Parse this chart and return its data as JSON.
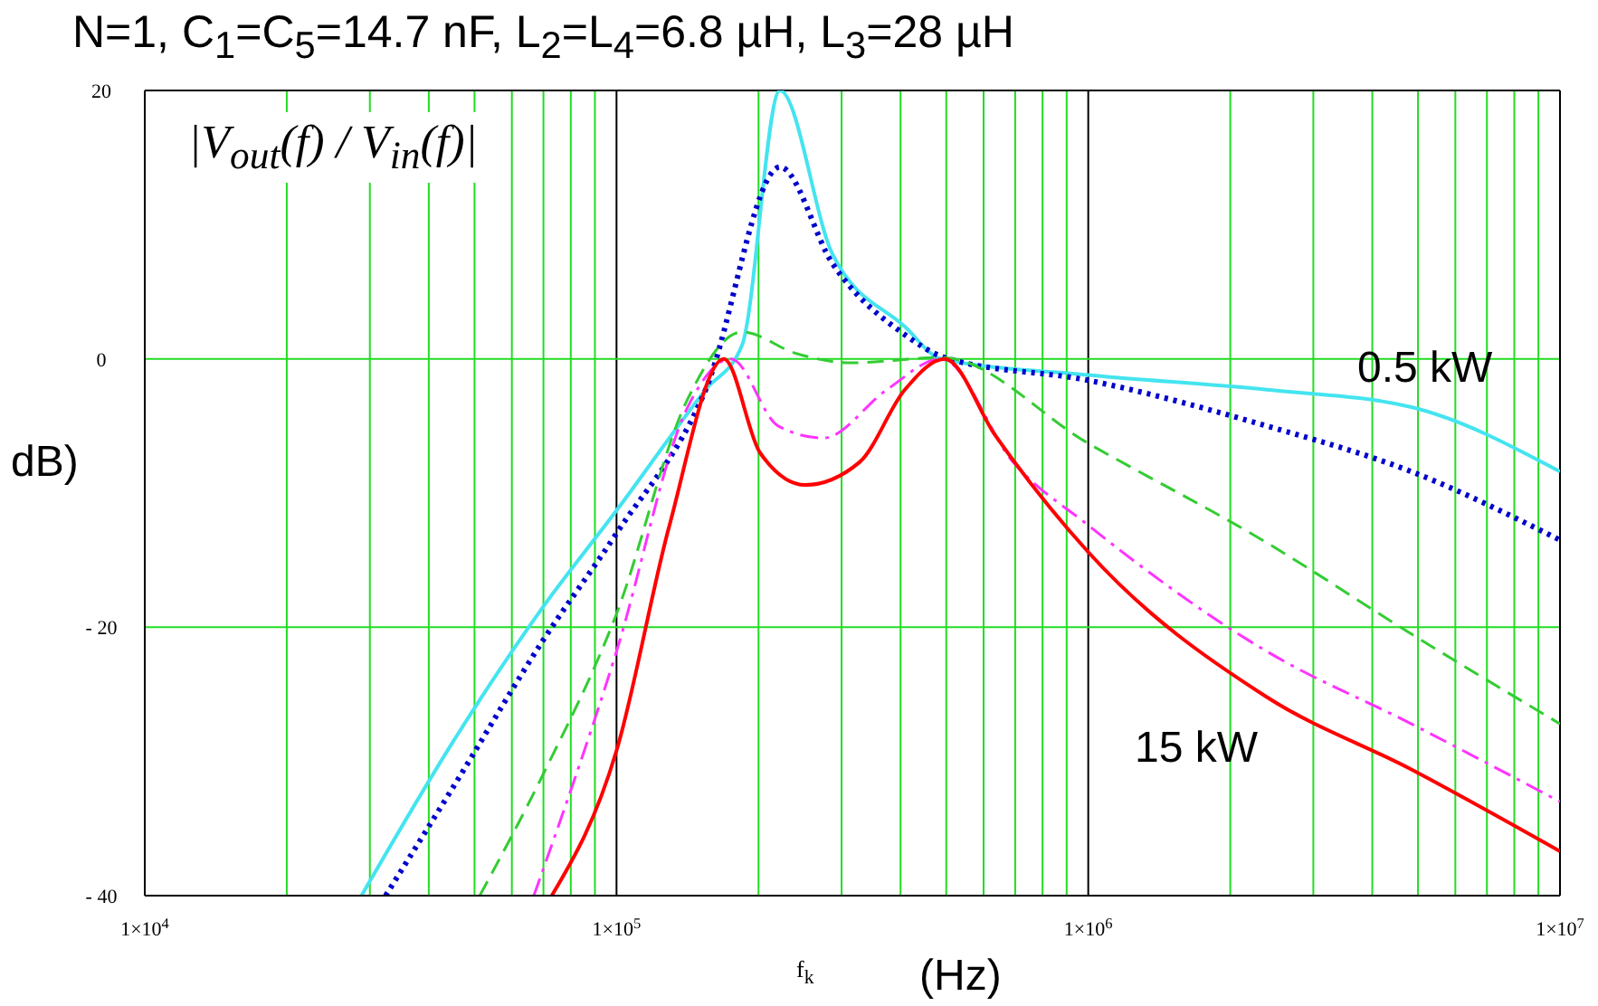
{
  "chart_data": {
    "type": "line",
    "title": "N=1, C$_{1}$=C$_{5}$=14.7 nF, L$_{2}$=L$_{4}$=6.8 µH, L$_{3}$=28 µH",
    "xlabel": "f$_{k}$",
    "ylabel": "dB)",
    "log": "x",
    "grid": true,
    "legend": false,
    "marker": "none",
    "xlim": [
      10000,
      10000000
    ],
    "xticks": [
      {
        "value": 10000,
        "label": "1×10$^{4}$"
      },
      {
        "value": 20000,
        "label": null
      },
      {
        "value": 30000,
        "label": null
      },
      {
        "value": 40000,
        "label": null
      },
      {
        "value": 50000,
        "label": null
      },
      {
        "value": 60000,
        "label": null
      },
      {
        "value": 70000,
        "label": null
      },
      {
        "value": 80000,
        "label": null
      },
      {
        "value": 90000,
        "label": null
      },
      {
        "value": 100000,
        "label": "1×10$^{5}$"
      },
      {
        "value": 200000,
        "label": null
      },
      {
        "value": 300000,
        "label": null
      },
      {
        "value": 400000,
        "label": null
      },
      {
        "value": 500000,
        "label": null
      },
      {
        "value": 600000,
        "label": null
      },
      {
        "value": 700000,
        "label": null
      },
      {
        "value": 800000,
        "label": null
      },
      {
        "value": 900000,
        "label": null
      },
      {
        "value": 1000000,
        "label": "1×10$^{6}$"
      },
      {
        "value": 2000000,
        "label": null
      },
      {
        "value": 3000000,
        "label": null
      },
      {
        "value": 4000000,
        "label": null
      },
      {
        "value": 5000000,
        "label": null
      },
      {
        "value": 6000000,
        "label": null
      },
      {
        "value": 7000000,
        "label": null
      },
      {
        "value": 8000000,
        "label": null
      },
      {
        "value": 9000000,
        "label": null
      },
      {
        "value": 10000000,
        "label": "1×10$^{7}$"
      }
    ],
    "ylim": [
      -40,
      20
    ],
    "yticks": [
      {
        "value": -40,
        "label": "- 40"
      },
      {
        "value": -20,
        "label": "- 20"
      },
      0,
      20
    ],
    "annotations": [
      "|V$_{out}$(f) / V$_{in}$(f)|",
      "(Hz)",
      "0.5 kW",
      "15 kW"
    ],
    "series": [
      {
        "color": "#44e4f0",
        "line_style": "solid",
        "x": [
          28800,
          44900,
          69800,
          100000,
          154500,
          184500,
          222000,
          287000,
          408500,
          487500,
          1000000,
          2390000,
          4840000,
          10000000
        ],
        "values": [
          -40,
          -28.6,
          -18.5,
          -11.3,
          -2.3,
          1,
          20,
          7.8,
          2.4,
          0,
          -1.2,
          -2.3,
          -3.6,
          -8.4
        ]
      },
      {
        "color": "#0000cc",
        "line_style": "dotted",
        "x": [
          32400,
          44900,
          69800,
          100000,
          154500,
          222000,
          287000,
          408500,
          495900,
          1000000,
          2390000,
          4840000,
          10000000
        ],
        "values": [
          -40,
          -32,
          -21,
          -13,
          -2.3,
          14.3,
          7.1,
          1.8,
          0.1,
          -1.6,
          -5,
          -8.4,
          -13.5
        ]
      },
      {
        "color": "#33cc33",
        "line_style": "dashed",
        "x": [
          51300,
          69800,
          100000,
          141500,
          184500,
          240400,
          313500,
          487500,
          1000000,
          2390000,
          4840000,
          10000000
        ],
        "values": [
          -40,
          -31,
          -19,
          -3,
          2,
          0.4,
          -0.3,
          0.1,
          -6.3,
          -13.7,
          -20.5,
          -27.2
        ]
      },
      {
        "color": "#ff33ff",
        "line_style": "dashdot",
        "x": [
          66800,
          100000,
          141500,
          174900,
          220100,
          274400,
          374000,
          487500,
          693000,
          1000000,
          2390000,
          4840000,
          10000000
        ],
        "values": [
          -40,
          -21.8,
          -3.6,
          0,
          -5,
          -5.9,
          -2.3,
          0,
          -7.7,
          -12.4,
          -21.8,
          -27.2,
          -33
        ]
      },
      {
        "color": "#ff0000",
        "line_style": "solid",
        "x": [
          72900,
          100000,
          129500,
          168800,
          201500,
          251200,
          327500,
          408500,
          495900,
          635000,
          1000000,
          2390000,
          4840000,
          10000000
        ],
        "values": [
          -40,
          -29.2,
          -12.4,
          0,
          -7,
          -9.4,
          -7.7,
          -2.3,
          0,
          -5.7,
          -14.4,
          -25.2,
          -30.6,
          -36.7
        ]
      }
    ]
  }
}
